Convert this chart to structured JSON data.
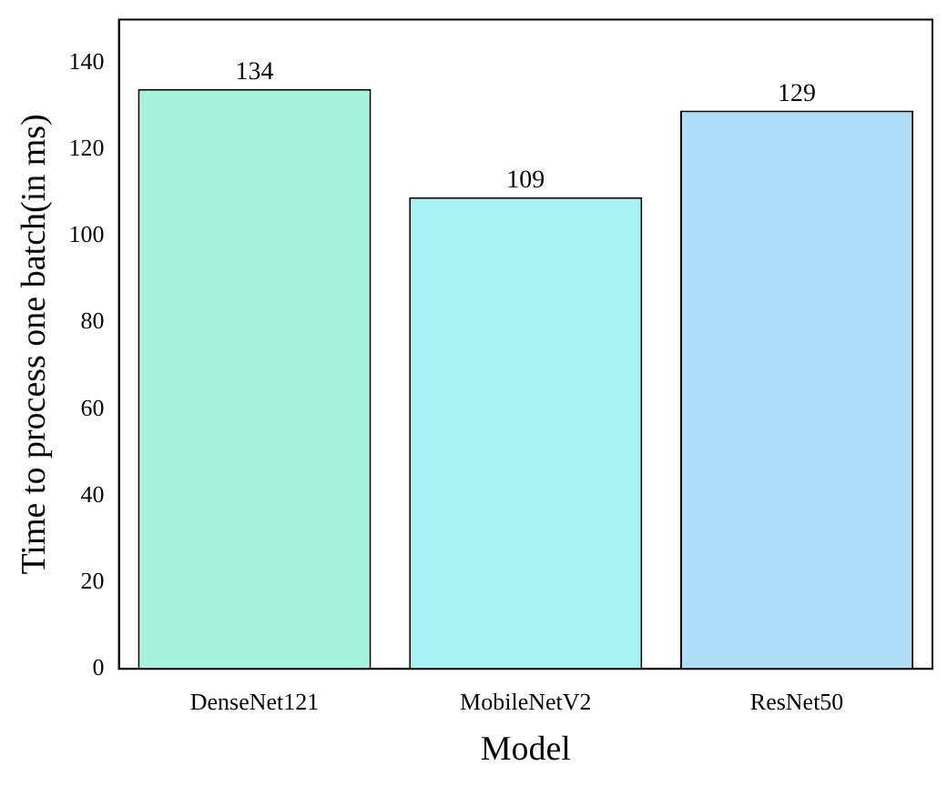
{
  "chart_data": {
    "type": "bar",
    "xlabel": "Model",
    "ylabel": "Time to process one batch(in ms)",
    "categories": [
      "DenseNet121",
      "MobileNetV2",
      "ResNet50"
    ],
    "values": [
      134,
      109,
      129
    ],
    "colors": [
      "#a6f2dc",
      "#a6f2f2",
      "#b0def8"
    ],
    "ylim": [
      0,
      150
    ],
    "yticks": [
      0,
      20,
      40,
      60,
      80,
      100,
      120,
      140
    ],
    "grid": false,
    "legend": false,
    "data_labels": true
  }
}
